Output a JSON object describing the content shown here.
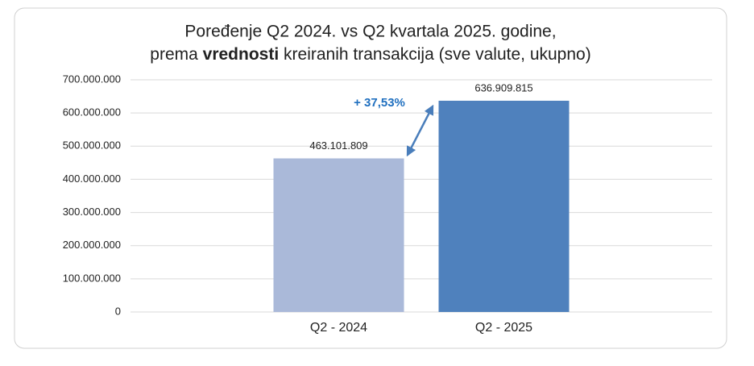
{
  "chart_data": {
    "type": "bar",
    "title": {
      "line1": "Poređenje Q2 2024. vs Q2 kvartala 2025. godine,",
      "line2": [
        "prema ",
        "vrednosti",
        " kreiranih transakcija (sve valute, ukupno)"
      ]
    },
    "categories": [
      "Q2 - 2024",
      "Q2 - 2025"
    ],
    "values": [
      463101809,
      636909815
    ],
    "value_labels": [
      "463.101.809",
      "636.909.815"
    ],
    "colors": [
      "#aab9d9",
      "#4f81bd"
    ],
    "annotation": "+ 37,53%",
    "ylim": [
      0,
      700000000
    ],
    "yticks": [
      0,
      {
        "value": 100000000,
        "label": "100.000.000"
      },
      {
        "value": 200000000,
        "label": "200.000.000"
      },
      {
        "value": 300000000,
        "label": "300.000.000"
      },
      {
        "value": 400000000,
        "label": "400.000.000"
      },
      {
        "value": 500000000,
        "label": "500.000.000"
      },
      {
        "value": 600000000,
        "label": "600.000.000"
      },
      {
        "value": 700000000,
        "label": "700.000.000"
      }
    ],
    "grid": true
  }
}
